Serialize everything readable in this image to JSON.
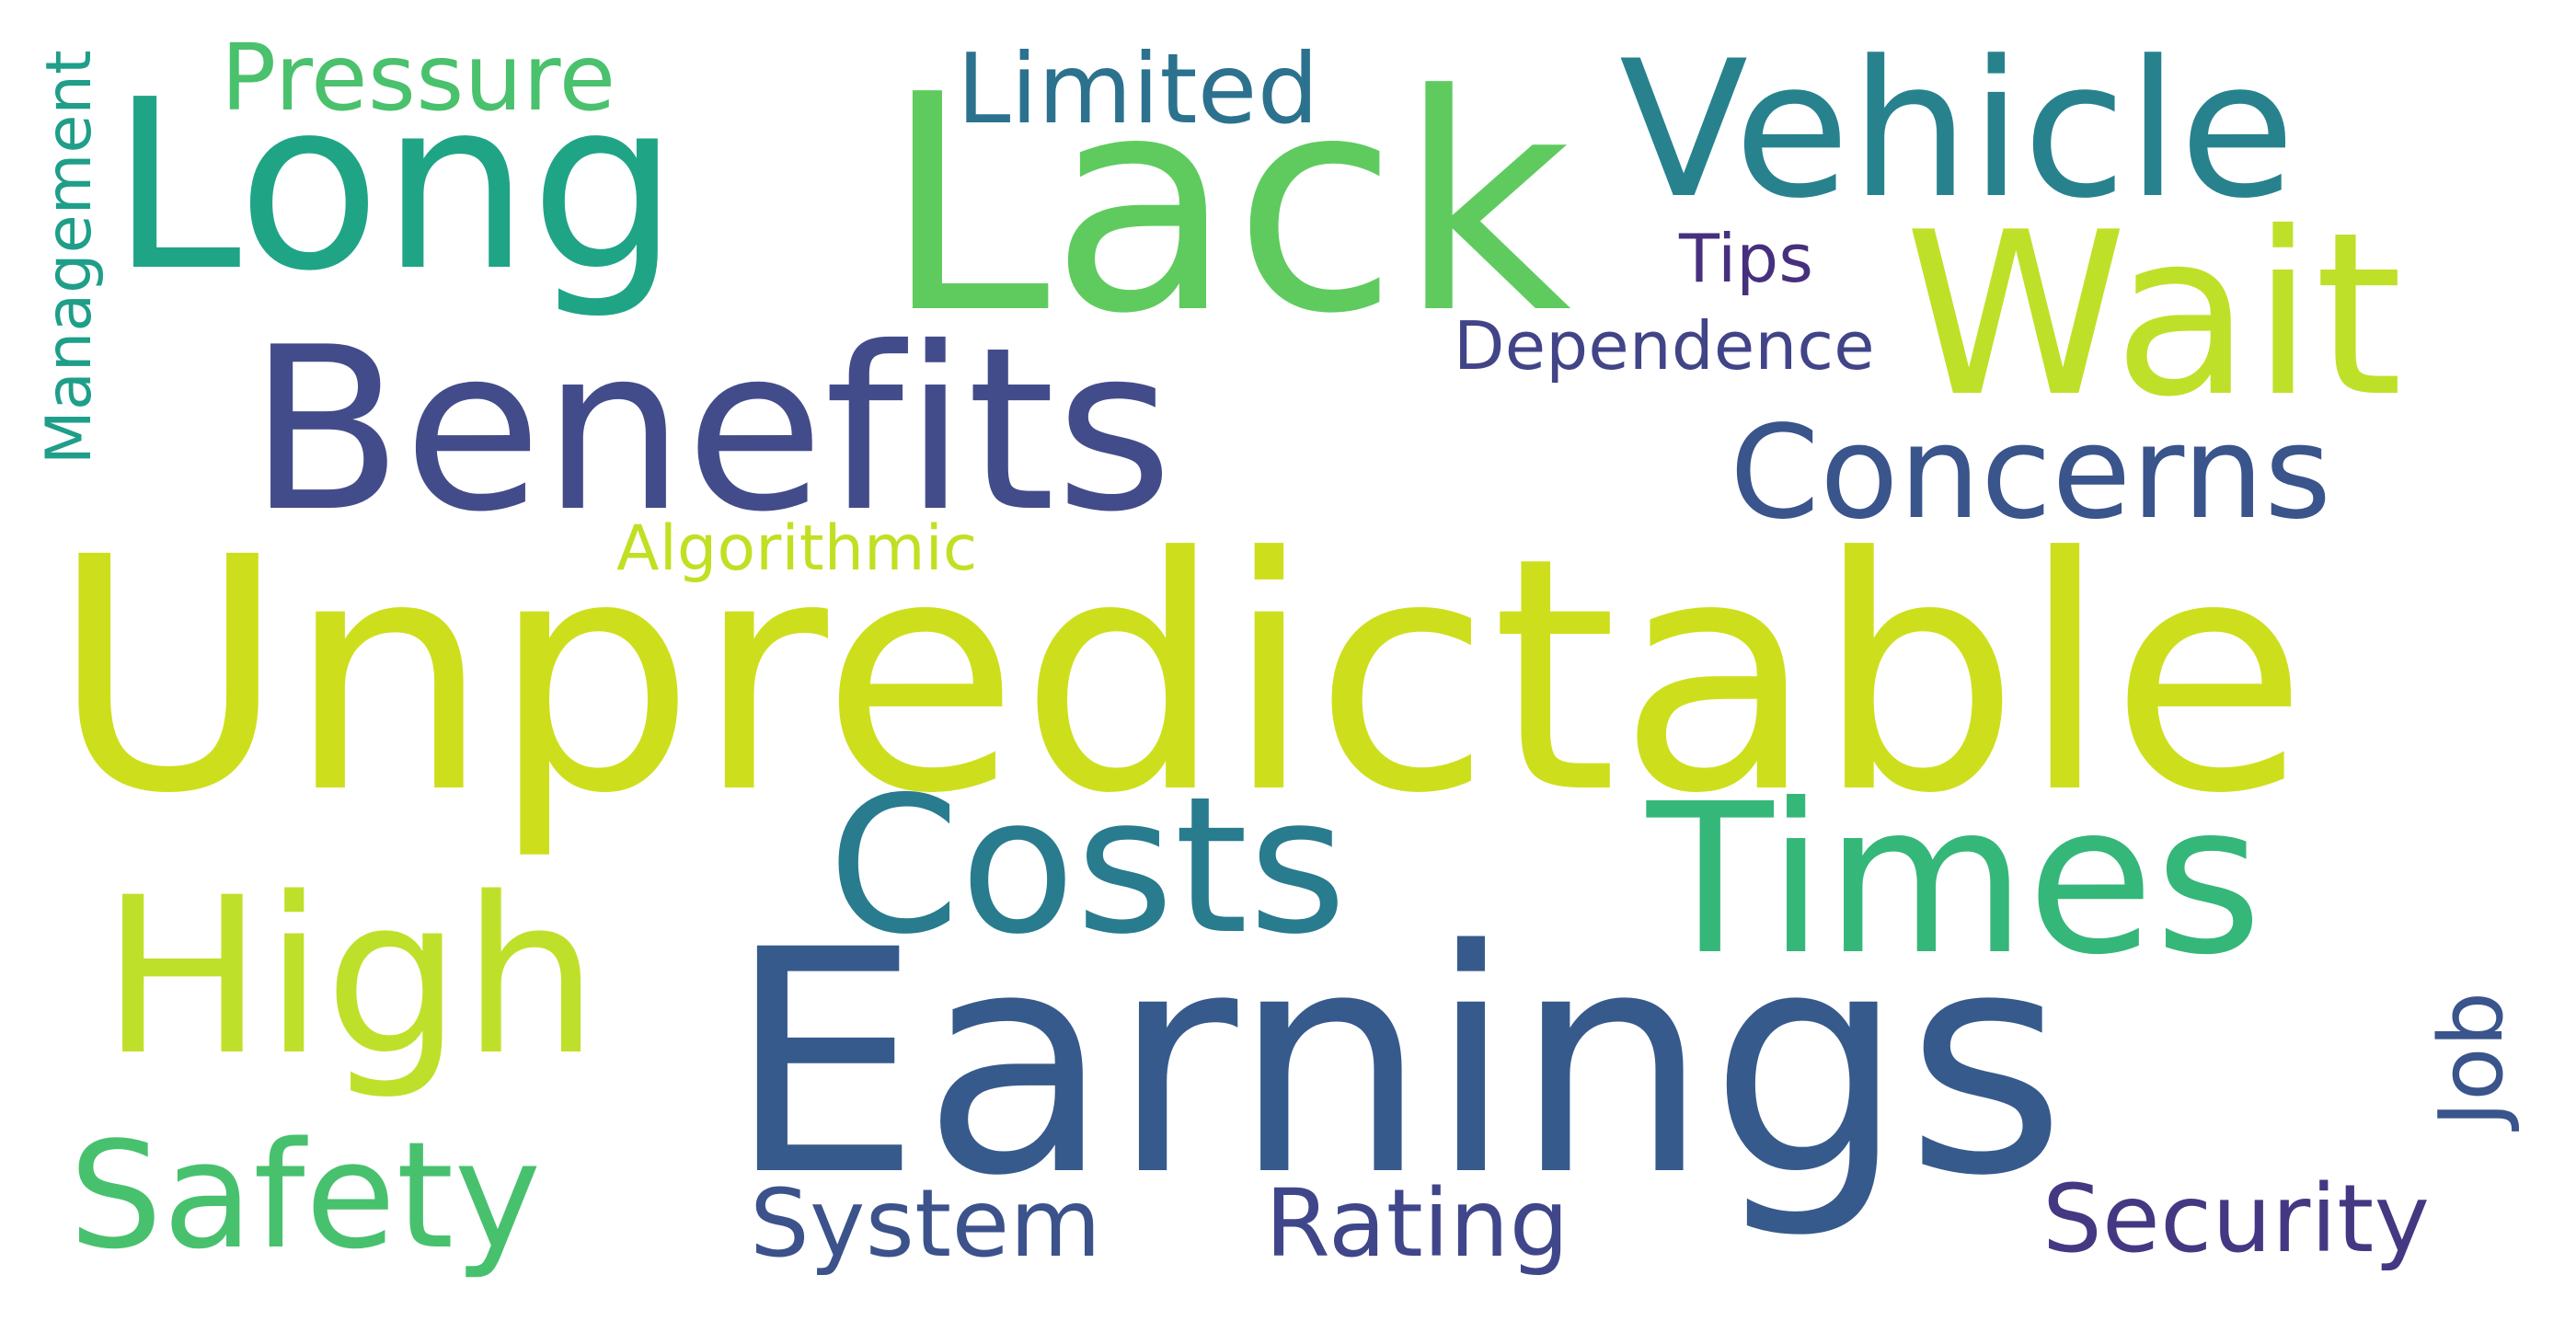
{
  "words": [
    {
      "text": "Unpredictable",
      "color": "#cddf1c"
    },
    {
      "text": "Earnings",
      "color": "#375a8c"
    },
    {
      "text": "Lack",
      "color": "#5fcb5f"
    },
    {
      "text": "Benefits",
      "color": "#434c8a"
    },
    {
      "text": "Long",
      "color": "#20a486"
    },
    {
      "text": "Wait",
      "color": "#bfe029"
    },
    {
      "text": "Vehicle",
      "color": "#27828e"
    },
    {
      "text": "Times",
      "color": "#35b779"
    },
    {
      "text": "High",
      "color": "#bfe02a"
    },
    {
      "text": "Costs",
      "color": "#297b8e"
    },
    {
      "text": "Safety",
      "color": "#48c16e"
    },
    {
      "text": "Concerns",
      "color": "#3a548c"
    },
    {
      "text": "Limited",
      "color": "#2c728e"
    },
    {
      "text": "Pressure",
      "color": "#4ac16d"
    },
    {
      "text": "System",
      "color": "#3b528b"
    },
    {
      "text": "Rating",
      "color": "#40468a"
    },
    {
      "text": "Security",
      "color": "#453882"
    },
    {
      "text": "Job",
      "color": "#3a548c"
    },
    {
      "text": "Dependence",
      "color": "#414487"
    },
    {
      "text": "Tips",
      "color": "#46307e"
    },
    {
      "text": "Algorithmic",
      "color": "#c2df23"
    },
    {
      "text": "Management",
      "color": "#1f9e89"
    }
  ]
}
